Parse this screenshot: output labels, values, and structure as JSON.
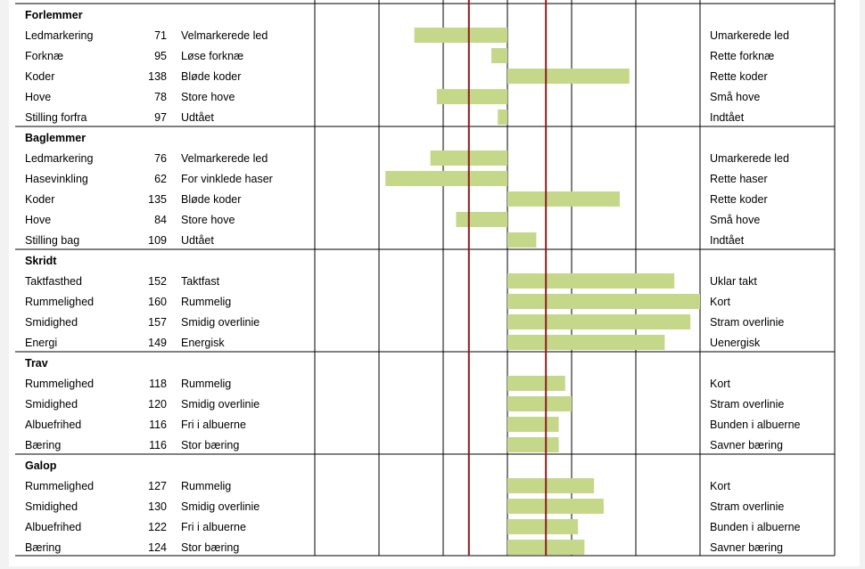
{
  "chart_data": {
    "type": "bar",
    "title": "",
    "xlim": [
      40,
      160
    ],
    "center": 100,
    "reference_lines": [
      88,
      112
    ],
    "series_color": "#c5d88a",
    "reference_color": "#8c1c1c",
    "groups": [
      {
        "name": "Forlemmer",
        "rows": [
          {
            "label": "Ledmarkering",
            "value": 71,
            "low": "Velmarkerede led",
            "high": "Umarkerede led"
          },
          {
            "label": "Forknæ",
            "value": 95,
            "low": "Løse forknæ",
            "high": "Rette forknæ"
          },
          {
            "label": "Koder",
            "value": 138,
            "low": "Bløde koder",
            "high": "Rette koder"
          },
          {
            "label": "Hove",
            "value": 78,
            "low": "Store hove",
            "high": "Små hove"
          },
          {
            "label": "Stilling forfra",
            "value": 97,
            "low": "Udtået",
            "high": "Indtået"
          }
        ]
      },
      {
        "name": "Baglemmer",
        "rows": [
          {
            "label": "Ledmarkering",
            "value": 76,
            "low": "Velmarkerede led",
            "high": "Umarkerede led"
          },
          {
            "label": "Hasevinkling",
            "value": 62,
            "low": "For vinklede haser",
            "high": "Rette haser"
          },
          {
            "label": "Koder",
            "value": 135,
            "low": "Bløde koder",
            "high": "Rette koder"
          },
          {
            "label": "Hove",
            "value": 84,
            "low": "Store hove",
            "high": "Små hove"
          },
          {
            "label": "Stilling bag",
            "value": 109,
            "low": "Udtået",
            "high": "Indtået"
          }
        ]
      },
      {
        "name": "Skridt",
        "rows": [
          {
            "label": "Taktfasthed",
            "value": 152,
            "low": "Taktfast",
            "high": "Uklar takt"
          },
          {
            "label": "Rummelighed",
            "value": 160,
            "low": "Rummelig",
            "high": "Kort"
          },
          {
            "label": "Smidighed",
            "value": 157,
            "low": "Smidig overlinie",
            "high": "Stram overlinie"
          },
          {
            "label": "Energi",
            "value": 149,
            "low": "Energisk",
            "high": "Uenergisk"
          }
        ]
      },
      {
        "name": "Trav",
        "rows": [
          {
            "label": "Rummelighed",
            "value": 118,
            "low": "Rummelig",
            "high": "Kort"
          },
          {
            "label": "Smidighed",
            "value": 120,
            "low": "Smidig overlinie",
            "high": "Stram overlinie"
          },
          {
            "label": "Albuefrihed",
            "value": 116,
            "low": "Fri i albuerne",
            "high": "Bunden i albuerne"
          },
          {
            "label": "Bæring",
            "value": 116,
            "low": "Stor bæring",
            "high": "Savner bæring"
          }
        ]
      },
      {
        "name": "Galop",
        "rows": [
          {
            "label": "Rummelighed",
            "value": 127,
            "low": "Rummelig",
            "high": "Kort"
          },
          {
            "label": "Smidighed",
            "value": 130,
            "low": "Smidig overlinie",
            "high": "Stram overlinie"
          },
          {
            "label": "Albuefrihed",
            "value": 122,
            "low": "Fri i albuerne",
            "high": "Bunden i albuerne"
          },
          {
            "label": "Bæring",
            "value": 124,
            "low": "Stor bæring",
            "high": "Savner bæring"
          }
        ]
      }
    ]
  }
}
